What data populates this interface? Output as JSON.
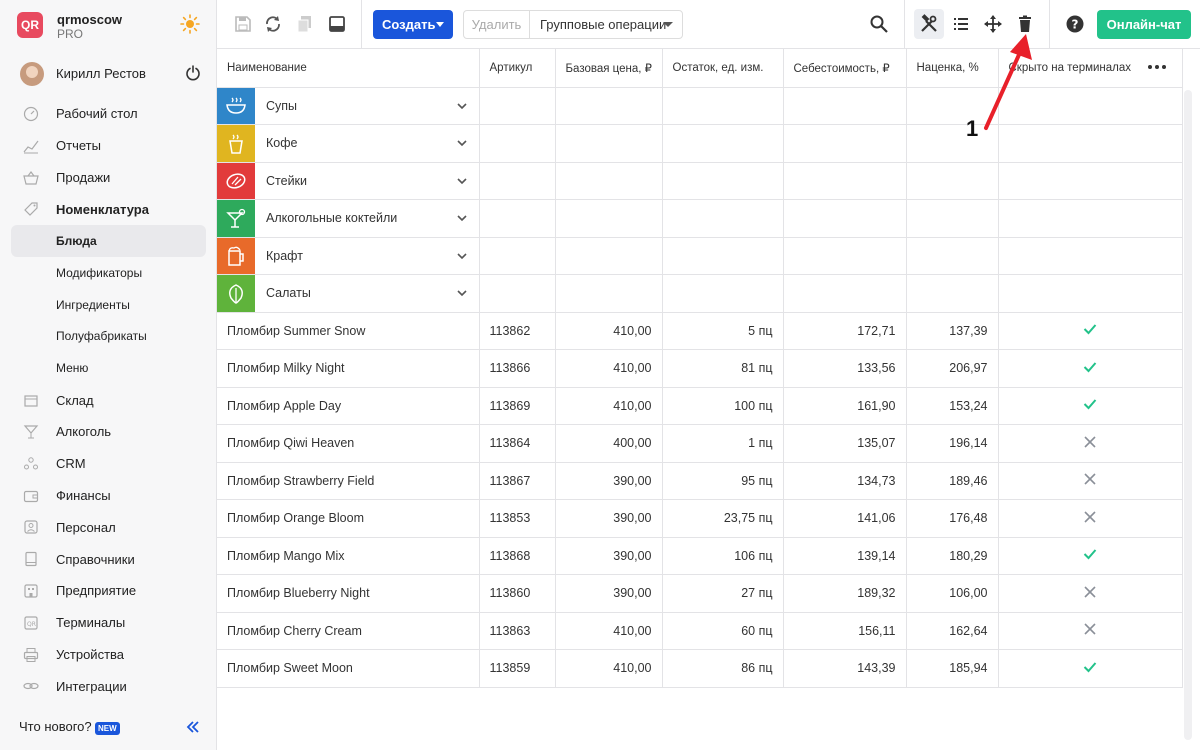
{
  "brand": {
    "name": "qrmoscow",
    "plan": "PRO",
    "logo": "QR"
  },
  "user": {
    "name": "Кирилл Рестов"
  },
  "nav": [
    {
      "label": "Рабочий стол",
      "icon": "gauge-icon"
    },
    {
      "label": "Отчеты",
      "icon": "chart-icon"
    },
    {
      "label": "Продажи",
      "icon": "basket-icon"
    },
    {
      "label": "Номенклатура",
      "icon": "tag-icon"
    },
    {
      "label": "Блюда"
    },
    {
      "label": "Модификаторы"
    },
    {
      "label": "Ингредиенты"
    },
    {
      "label": "Полуфабрикаты"
    },
    {
      "label": "Меню"
    },
    {
      "label": "Склад",
      "icon": "box-icon"
    },
    {
      "label": "Алкоголь",
      "icon": "glass-icon"
    },
    {
      "label": "CRM",
      "icon": "people-icon"
    },
    {
      "label": "Финансы",
      "icon": "wallet-icon"
    },
    {
      "label": "Персонал",
      "icon": "person-icon"
    },
    {
      "label": "Справочники",
      "icon": "book-icon"
    },
    {
      "label": "Предприятие",
      "icon": "building-icon"
    },
    {
      "label": "Терминалы",
      "icon": "terminal-icon"
    },
    {
      "label": "Устройства",
      "icon": "printer-icon"
    },
    {
      "label": "Интеграции",
      "icon": "link-icon"
    }
  ],
  "footer": {
    "whats_new": "Что нового?",
    "badge": "NEW"
  },
  "toolbar": {
    "create": "Создать",
    "delete": "Удалить",
    "group_ops": "Групповые операции",
    "chat": "Онлайн-чат"
  },
  "table": {
    "columns": [
      "Наименование",
      "Артикул",
      "Базовая цена, ₽",
      "Остаток, ед. изм.",
      "Себестоимость, ₽",
      "Наценка, %",
      "Скрыто на терминалах"
    ],
    "categories": [
      {
        "label": "Супы",
        "color": "#2f86c9",
        "icon": "soup-icon"
      },
      {
        "label": "Кофе",
        "color": "#e0b520",
        "icon": "coffee-icon"
      },
      {
        "label": "Стейки",
        "color": "#e23b3b",
        "icon": "steak-icon"
      },
      {
        "label": "Алкогольные коктейли",
        "color": "#2eaa5c",
        "icon": "cocktail-icon"
      },
      {
        "label": "Крафт",
        "color": "#e86a2a",
        "icon": "beer-icon"
      },
      {
        "label": "Салаты",
        "color": "#5fb33b",
        "icon": "salad-icon"
      }
    ],
    "rows": [
      {
        "name": "Пломбир Summer Snow",
        "sku": "113862",
        "price": "410,00",
        "stock": "5 пц",
        "cost": "172,71",
        "markup": "137,39",
        "hidden": true
      },
      {
        "name": "Пломбир Milky Night",
        "sku": "113866",
        "price": "410,00",
        "stock": "81 пц",
        "cost": "133,56",
        "markup": "206,97",
        "hidden": true
      },
      {
        "name": "Пломбир Apple Day",
        "sku": "113869",
        "price": "410,00",
        "stock": "100 пц",
        "cost": "161,90",
        "markup": "153,24",
        "hidden": true
      },
      {
        "name": "Пломбир Qiwi Heaven",
        "sku": "113864",
        "price": "400,00",
        "stock": "1 пц",
        "cost": "135,07",
        "markup": "196,14",
        "hidden": false
      },
      {
        "name": "Пломбир Strawberry Field",
        "sku": "113867",
        "price": "390,00",
        "stock": "95 пц",
        "cost": "134,73",
        "markup": "189,46",
        "hidden": false
      },
      {
        "name": "Пломбир Orange Bloom",
        "sku": "113853",
        "price": "390,00",
        "stock": "23,75 пц",
        "cost": "141,06",
        "markup": "176,48",
        "hidden": false
      },
      {
        "name": "Пломбир Mango Mix",
        "sku": "113868",
        "price": "390,00",
        "stock": "106 пц",
        "cost": "139,14",
        "markup": "180,29",
        "hidden": true
      },
      {
        "name": "Пломбир Blueberry Night",
        "sku": "113860",
        "price": "390,00",
        "stock": "27 пц",
        "cost": "189,32",
        "markup": "106,00",
        "hidden": false
      },
      {
        "name": "Пломбир Cherry Cream",
        "sku": "113863",
        "price": "410,00",
        "stock": "60 пц",
        "cost": "156,11",
        "markup": "162,64",
        "hidden": false
      },
      {
        "name": "Пломбир Sweet Moon",
        "sku": "113859",
        "price": "410,00",
        "stock": "86 пц",
        "cost": "143,39",
        "markup": "185,94",
        "hidden": true
      }
    ]
  },
  "annotation": {
    "label": "1",
    "color": "#e8202a"
  }
}
